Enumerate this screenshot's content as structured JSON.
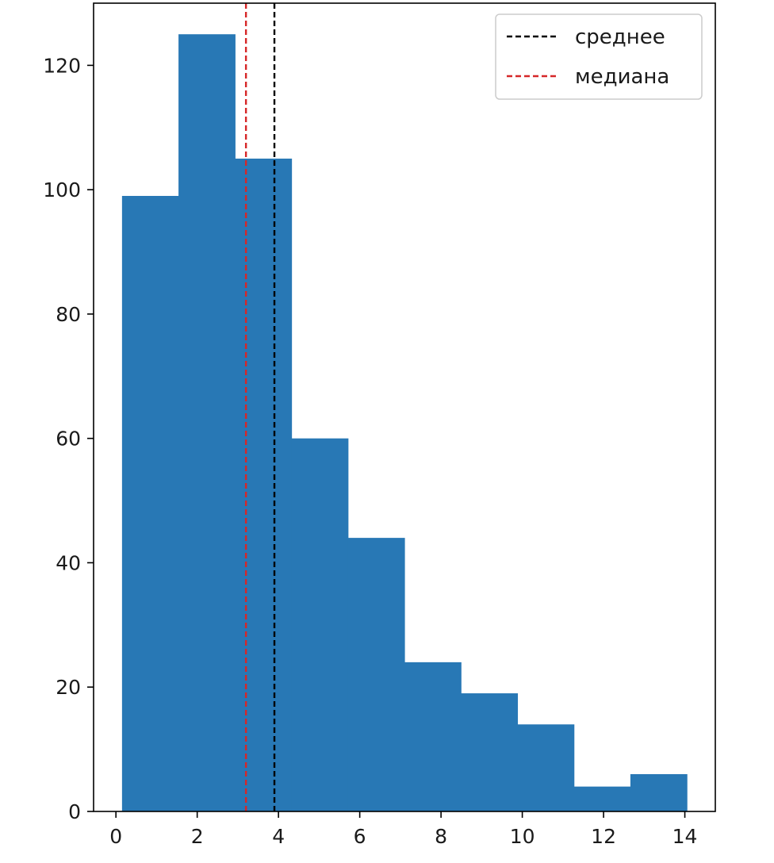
{
  "chart_data": {
    "type": "histogram",
    "bins": [
      {
        "x0": 0.15,
        "x1": 1.54,
        "count": 99
      },
      {
        "x0": 1.54,
        "x1": 2.93,
        "count": 125
      },
      {
        "x0": 2.93,
        "x1": 4.32,
        "count": 105
      },
      {
        "x0": 4.32,
        "x1": 5.71,
        "count": 60
      },
      {
        "x0": 5.71,
        "x1": 7.1,
        "count": 44
      },
      {
        "x0": 7.1,
        "x1": 8.49,
        "count": 24
      },
      {
        "x0": 8.49,
        "x1": 9.88,
        "count": 19
      },
      {
        "x0": 9.88,
        "x1": 11.27,
        "count": 14
      },
      {
        "x0": 11.27,
        "x1": 12.66,
        "count": 4
      },
      {
        "x0": 12.66,
        "x1": 14.05,
        "count": 6
      }
    ],
    "bar_color": "#2878b5",
    "xlim": [
      -0.55,
      14.75
    ],
    "ylim": [
      0,
      130
    ],
    "xticks": [
      0,
      2,
      4,
      6,
      8,
      10,
      12,
      14
    ],
    "yticks": [
      0,
      20,
      40,
      60,
      80,
      100,
      120
    ],
    "xtick_labels": [
      "0",
      "2",
      "4",
      "6",
      "8",
      "10",
      "12",
      "14"
    ],
    "ytick_labels": [
      "0",
      "20",
      "40",
      "60",
      "80",
      "100",
      "120"
    ],
    "vlines": [
      {
        "name": "среднее",
        "x": 3.9,
        "color": "#000000",
        "style": "dashed"
      },
      {
        "name": "медиана",
        "x": 3.2,
        "color": "#d62728",
        "style": "dashed"
      }
    ],
    "legend": {
      "placement": "top-right",
      "entries": [
        "среднее",
        "медиана"
      ]
    },
    "grid": false,
    "title": "",
    "xlabel": "",
    "ylabel": ""
  }
}
